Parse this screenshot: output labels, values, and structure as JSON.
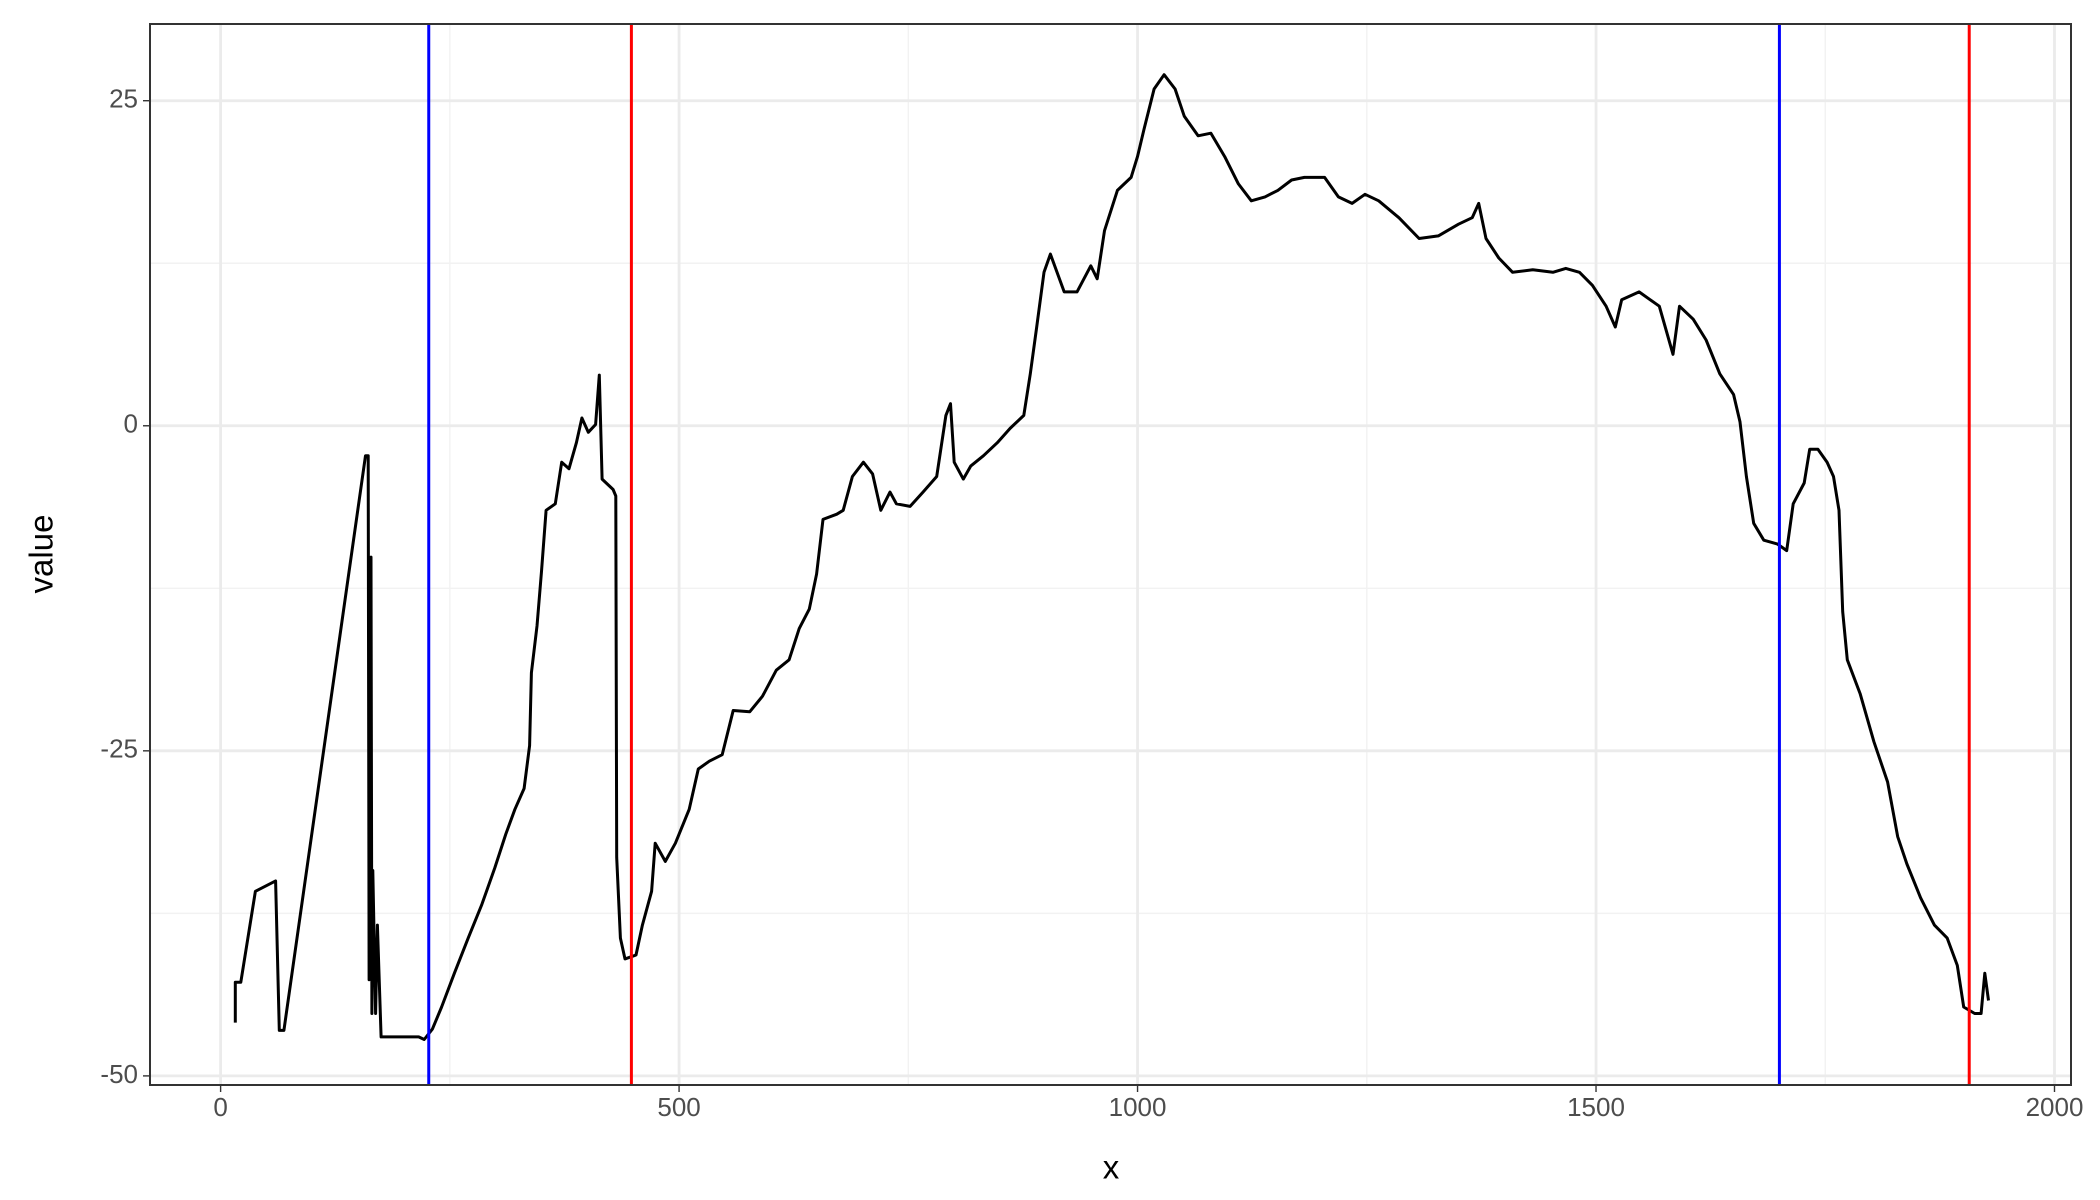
{
  "chart_data": {
    "type": "line",
    "x_label": "x",
    "y_label": "value",
    "x": [
      16,
      16,
      22,
      38,
      60,
      64,
      69,
      158,
      161,
      162,
      164,
      165,
      166,
      169,
      171,
      175,
      216,
      222,
      231,
      241,
      255,
      270,
      285,
      299,
      311,
      321,
      331,
      337,
      339,
      345,
      350,
      355,
      365,
      372,
      380,
      388,
      394,
      401,
      409,
      413,
      416,
      428,
      431,
      432,
      436,
      441,
      453,
      460,
      470,
      474,
      485,
      496,
      511,
      521,
      533,
      547,
      559,
      577,
      591,
      606,
      620,
      631,
      642,
      650,
      657,
      672,
      679,
      689,
      701,
      711,
      720,
      730,
      737,
      752,
      766,
      781,
      791,
      796,
      800,
      810,
      818,
      832,
      847,
      861,
      876,
      883,
      890,
      898,
      905,
      920,
      934,
      949,
      956,
      964,
      978,
      993,
      1000,
      1007,
      1018,
      1029,
      1041,
      1051,
      1066,
      1080,
      1095,
      1110,
      1124,
      1139,
      1153,
      1168,
      1182,
      1204,
      1219,
      1234,
      1248,
      1263,
      1285,
      1307,
      1328,
      1350,
      1365,
      1372,
      1380,
      1394,
      1409,
      1431,
      1453,
      1467,
      1482,
      1496,
      1511,
      1521,
      1528,
      1547,
      1569,
      1584,
      1591,
      1606,
      1620,
      1635,
      1650,
      1657,
      1664,
      1672,
      1683,
      1698,
      1708,
      1715,
      1727,
      1733,
      1742,
      1752,
      1759,
      1765,
      1769,
      1774,
      1788,
      1803,
      1818,
      1829,
      1839,
      1854,
      1869,
      1883,
      1894,
      1901,
      1913,
      1920,
      1924,
      1928
    ],
    "values": [
      -45.9,
      -42.8,
      -42.8,
      -35.8,
      -35.0,
      -46.5,
      -46.5,
      -2.3,
      -2.3,
      -42.6,
      -10.1,
      -45.2,
      -34.2,
      -45.2,
      -38.4,
      -47.0,
      -47.0,
      -47.2,
      -46.4,
      -44.7,
      -42.1,
      -39.4,
      -36.8,
      -34.0,
      -31.4,
      -29.5,
      -27.9,
      -24.6,
      -19.0,
      -15.4,
      -11.2,
      -6.5,
      -6.0,
      -2.8,
      -3.3,
      -1.3,
      0.6,
      -0.5,
      0.1,
      3.9,
      -4.1,
      -4.9,
      -5.4,
      -33.2,
      -39.4,
      -41.0,
      -40.7,
      -38.4,
      -35.8,
      -32.1,
      -33.5,
      -32.1,
      -29.5,
      -26.4,
      -25.8,
      -25.3,
      -21.9,
      -22.0,
      -20.8,
      -18.8,
      -18.0,
      -15.6,
      -14.1,
      -11.4,
      -7.2,
      -6.8,
      -6.5,
      -3.9,
      -2.8,
      -3.7,
      -6.5,
      -5.1,
      -6.0,
      -6.2,
      -5.1,
      -3.9,
      0.8,
      1.7,
      -2.8,
      -4.1,
      -3.1,
      -2.3,
      -1.3,
      -0.2,
      0.8,
      4.0,
      7.6,
      11.8,
      13.2,
      10.3,
      10.3,
      12.3,
      11.3,
      15.0,
      18.1,
      19.1,
      20.7,
      22.8,
      25.9,
      27.0,
      25.9,
      23.8,
      22.3,
      22.5,
      20.7,
      18.6,
      17.3,
      17.6,
      18.1,
      18.9,
      19.1,
      19.1,
      17.6,
      17.1,
      17.8,
      17.3,
      16.0,
      14.4,
      14.6,
      15.5,
      16.0,
      17.1,
      14.4,
      12.9,
      11.8,
      12.0,
      11.8,
      12.1,
      11.8,
      10.8,
      9.2,
      7.6,
      9.7,
      10.3,
      9.2,
      5.5,
      9.2,
      8.2,
      6.6,
      4.0,
      2.4,
      0.3,
      -3.9,
      -7.5,
      -8.8,
      -9.1,
      -9.6,
      -6.0,
      -4.4,
      -1.8,
      -1.8,
      -2.8,
      -3.9,
      -6.5,
      -14.3,
      -18.0,
      -20.6,
      -24.3,
      -27.4,
      -31.6,
      -33.7,
      -36.3,
      -38.4,
      -39.4,
      -41.5,
      -44.7,
      -45.2,
      -45.2,
      -42.1,
      -44.2
    ],
    "color": "#000000",
    "vlines": [
      {
        "x": 227,
        "color": "#0000ff"
      },
      {
        "x": 448,
        "color": "#ff0000"
      },
      {
        "x": 1700,
        "color": "#0000ff"
      },
      {
        "x": 1907,
        "color": "#ff0000"
      }
    ],
    "xlim": [
      -77,
      2018
    ],
    "ylim": [
      -50.7,
      30.9
    ],
    "xticks": [
      0,
      500,
      1000,
      1500,
      2000
    ],
    "yticks": [
      -50,
      -25,
      0,
      25
    ],
    "xminor": [
      250,
      750,
      1250,
      1750
    ],
    "yminor": [
      -37.5,
      -12.5,
      12.5
    ],
    "grid": true
  }
}
